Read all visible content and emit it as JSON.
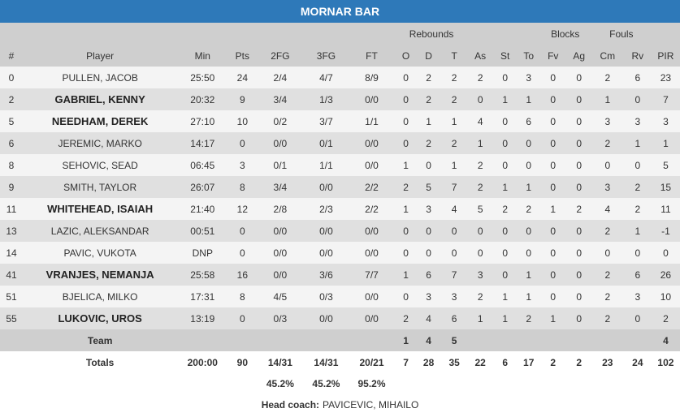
{
  "title": "MORNAR BAR",
  "group_headers": {
    "rebounds": "Rebounds",
    "blocks": "Blocks",
    "fouls": "Fouls"
  },
  "columns": [
    "#",
    "Player",
    "Min",
    "Pts",
    "2FG",
    "3FG",
    "FT",
    "O",
    "D",
    "T",
    "As",
    "St",
    "To",
    "Fv",
    "Ag",
    "Cm",
    "Rv",
    "PIR"
  ],
  "players": [
    {
      "num": "0",
      "name": "PULLEN, JACOB",
      "starter": false,
      "stats": [
        "25:50",
        "24",
        "2/4",
        "4/7",
        "8/9",
        "0",
        "2",
        "2",
        "2",
        "0",
        "3",
        "0",
        "0",
        "2",
        "6",
        "23"
      ]
    },
    {
      "num": "2",
      "name": "GABRIEL, KENNY",
      "starter": true,
      "stats": [
        "20:32",
        "9",
        "3/4",
        "1/3",
        "0/0",
        "0",
        "2",
        "2",
        "0",
        "1",
        "1",
        "0",
        "0",
        "1",
        "0",
        "7"
      ]
    },
    {
      "num": "5",
      "name": "NEEDHAM, DEREK",
      "starter": true,
      "stats": [
        "27:10",
        "10",
        "0/2",
        "3/7",
        "1/1",
        "0",
        "1",
        "1",
        "4",
        "0",
        "6",
        "0",
        "0",
        "3",
        "3",
        "3"
      ]
    },
    {
      "num": "6",
      "name": "JEREMIC, MARKO",
      "starter": false,
      "stats": [
        "14:17",
        "0",
        "0/0",
        "0/1",
        "0/0",
        "0",
        "2",
        "2",
        "1",
        "0",
        "0",
        "0",
        "0",
        "2",
        "1",
        "1"
      ]
    },
    {
      "num": "8",
      "name": "SEHOVIC, SEAD",
      "starter": false,
      "stats": [
        "06:45",
        "3",
        "0/1",
        "1/1",
        "0/0",
        "1",
        "0",
        "1",
        "2",
        "0",
        "0",
        "0",
        "0",
        "0",
        "0",
        "5"
      ]
    },
    {
      "num": "9",
      "name": "SMITH, TAYLOR",
      "starter": false,
      "stats": [
        "26:07",
        "8",
        "3/4",
        "0/0",
        "2/2",
        "2",
        "5",
        "7",
        "2",
        "1",
        "1",
        "0",
        "0",
        "3",
        "2",
        "15"
      ]
    },
    {
      "num": "11",
      "name": "WHITEHEAD, ISAIAH",
      "starter": true,
      "stats": [
        "21:40",
        "12",
        "2/8",
        "2/3",
        "2/2",
        "1",
        "3",
        "4",
        "5",
        "2",
        "2",
        "1",
        "2",
        "4",
        "2",
        "11"
      ]
    },
    {
      "num": "13",
      "name": "LAZIC, ALEKSANDAR",
      "starter": false,
      "stats": [
        "00:51",
        "0",
        "0/0",
        "0/0",
        "0/0",
        "0",
        "0",
        "0",
        "0",
        "0",
        "0",
        "0",
        "0",
        "2",
        "1",
        "-1"
      ]
    },
    {
      "num": "14",
      "name": "PAVIC, VUKOTA",
      "starter": false,
      "stats": [
        "DNP",
        "0",
        "0/0",
        "0/0",
        "0/0",
        "0",
        "0",
        "0",
        "0",
        "0",
        "0",
        "0",
        "0",
        "0",
        "0",
        "0"
      ]
    },
    {
      "num": "41",
      "name": "VRANJES, NEMANJA",
      "starter": true,
      "stats": [
        "25:58",
        "16",
        "0/0",
        "3/6",
        "7/7",
        "1",
        "6",
        "7",
        "3",
        "0",
        "1",
        "0",
        "0",
        "2",
        "6",
        "26"
      ]
    },
    {
      "num": "51",
      "name": "BJELICA, MILKO",
      "starter": false,
      "stats": [
        "17:31",
        "8",
        "4/5",
        "0/3",
        "0/0",
        "0",
        "3",
        "3",
        "2",
        "1",
        "1",
        "0",
        "0",
        "2",
        "3",
        "10"
      ]
    },
    {
      "num": "55",
      "name": "LUKOVIC, UROS",
      "starter": true,
      "stats": [
        "13:19",
        "0",
        "0/3",
        "0/0",
        "0/0",
        "2",
        "4",
        "6",
        "1",
        "1",
        "2",
        "1",
        "0",
        "2",
        "0",
        "2"
      ]
    }
  ],
  "team": {
    "label": "Team",
    "o": "1",
    "d": "4",
    "t": "5",
    "pir": "4"
  },
  "totals": {
    "label": "Totals",
    "min": "200:00",
    "pts": "90",
    "fg2": "14/31",
    "fg3": "14/31",
    "ft": "20/21",
    "o": "7",
    "d": "28",
    "t": "35",
    "as": "22",
    "st": "6",
    "to": "17",
    "fv": "2",
    "ag": "2",
    "cm": "23",
    "rv": "24",
    "pir": "102"
  },
  "percentages": {
    "fg2": "45.2%",
    "fg3": "45.2%",
    "ft": "95.2%"
  },
  "coach": {
    "label": "Head coach:",
    "name": "PAVICEVIC, MIHAILO"
  },
  "colors": {
    "title_bg": "#2e79b9",
    "header_bg": "#cfcfcf",
    "row_odd": "#f4f4f4",
    "row_even": "#e0e0e0"
  }
}
